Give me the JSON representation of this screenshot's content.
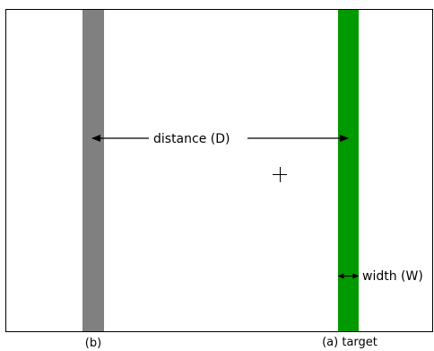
{
  "labels": {
    "distance": "distance (D)",
    "width": "width (W)",
    "bar_b": "(b)",
    "bar_target": "(a) target"
  },
  "colors": {
    "frame": "#000000",
    "bar_b": "#808080",
    "bar_target": "#009900",
    "arrows": "#000000"
  },
  "icons": {
    "cursor": "crosshair-icon"
  }
}
